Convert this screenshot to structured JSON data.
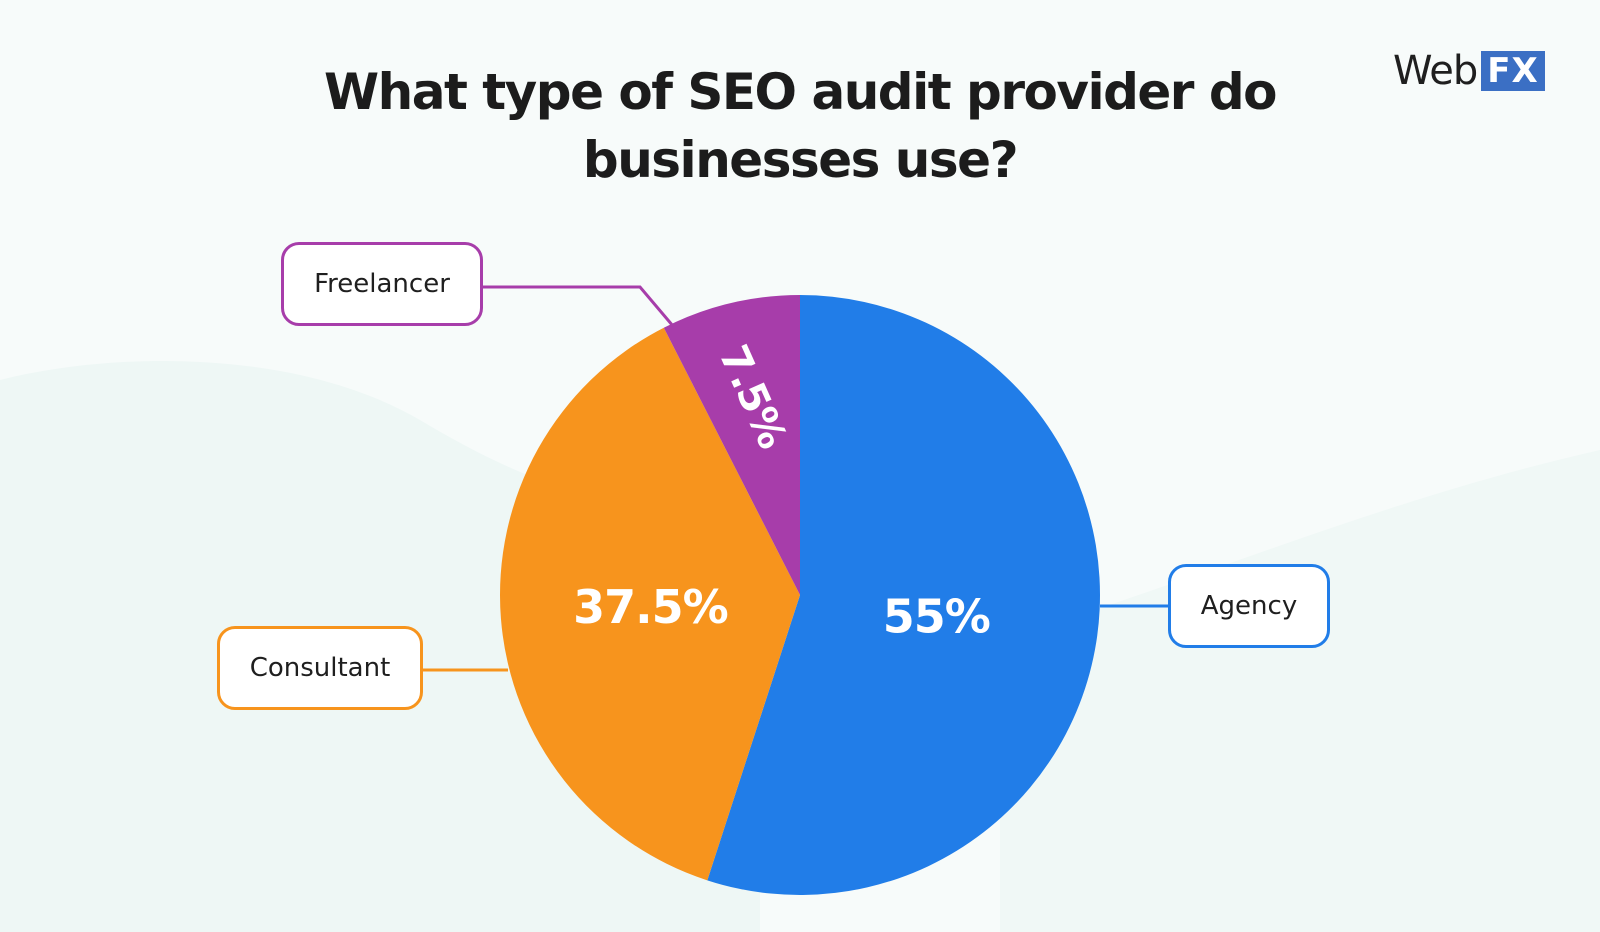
{
  "logo": {
    "word": "Web",
    "mark": "FX"
  },
  "chart_data": {
    "type": "pie",
    "title": "What type of SEO audit provider do businesses use?",
    "slices": [
      {
        "label": "Agency",
        "value": 55,
        "value_label": "55%",
        "color": "#217de8"
      },
      {
        "label": "Consultant",
        "value": 37.5,
        "value_label": "37.5%",
        "color": "#f7941d"
      },
      {
        "label": "Freelancer",
        "value": 7.5,
        "value_label": "7.5%",
        "color": "#a73daa"
      }
    ],
    "start_angle": "12 o'clock",
    "direction": "clockwise"
  }
}
